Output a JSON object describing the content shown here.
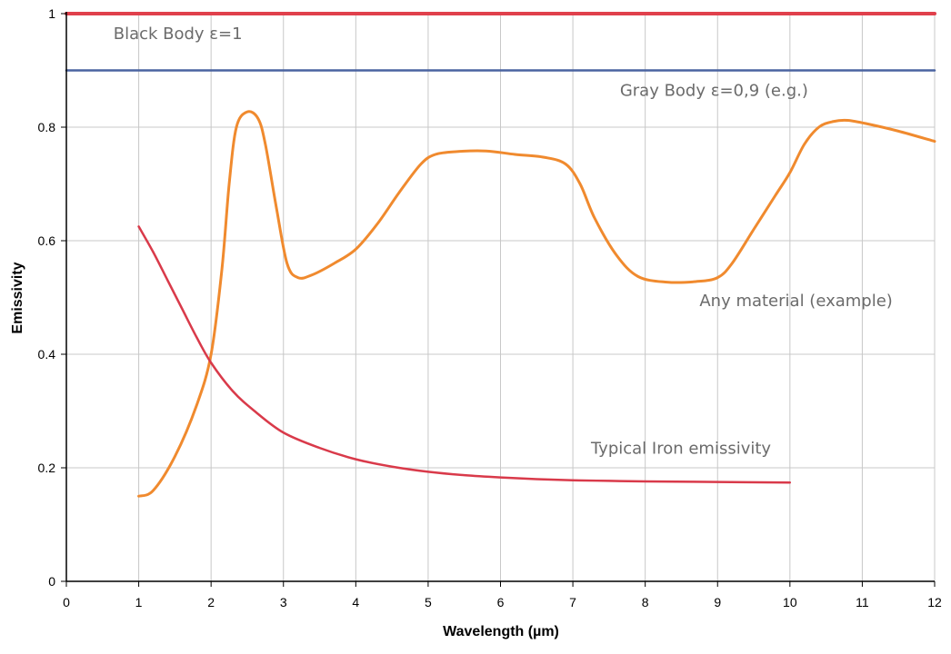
{
  "chart_data": {
    "type": "line",
    "title": "",
    "xlabel": "Wavelength (µm)",
    "ylabel": "Emissivity",
    "xlim": [
      0,
      12
    ],
    "ylim": [
      0,
      1
    ],
    "xticks": [
      0,
      1,
      2,
      3,
      4,
      5,
      6,
      7,
      8,
      9,
      10,
      11,
      12
    ],
    "yticks": [
      0,
      0.2,
      0.4,
      0.6,
      0.8,
      1
    ],
    "xtick_labels": [
      "0",
      "1",
      "2",
      "3",
      "4",
      "5",
      "6",
      "7",
      "8",
      "9",
      "10",
      "11",
      "12"
    ],
    "ytick_labels": [
      "0",
      "0.2",
      "0.4",
      "0.6",
      "0.8",
      "1"
    ],
    "grid": true,
    "series": [
      {
        "name": "Black Body ε=1",
        "color": "#e0404c",
        "x": [
          0,
          12
        ],
        "y": [
          1.0,
          1.0
        ]
      },
      {
        "name": "Gray Body ε=0,9 (e.g.)",
        "color": "#4a63a0",
        "x": [
          0,
          12
        ],
        "y": [
          0.9,
          0.9
        ]
      },
      {
        "name": "Any material (example)",
        "color": "#f08a2e",
        "x": [
          1.0,
          1.2,
          1.5,
          1.8,
          2.0,
          2.15,
          2.25,
          2.35,
          2.5,
          2.65,
          2.75,
          2.9,
          3.05,
          3.2,
          3.4,
          3.7,
          4.0,
          4.3,
          4.6,
          4.9,
          5.1,
          5.4,
          5.8,
          6.2,
          6.6,
          6.9,
          7.1,
          7.3,
          7.6,
          7.9,
          8.3,
          8.7,
          9.0,
          9.2,
          9.5,
          9.8,
          10.0,
          10.2,
          10.4,
          10.6,
          10.8,
          11.1,
          11.5,
          12.0
        ],
        "y": [
          0.15,
          0.16,
          0.22,
          0.31,
          0.4,
          0.55,
          0.7,
          0.8,
          0.827,
          0.815,
          0.77,
          0.66,
          0.56,
          0.535,
          0.54,
          0.56,
          0.585,
          0.63,
          0.685,
          0.735,
          0.752,
          0.757,
          0.758,
          0.752,
          0.747,
          0.735,
          0.7,
          0.64,
          0.575,
          0.537,
          0.527,
          0.528,
          0.535,
          0.56,
          0.62,
          0.68,
          0.72,
          0.77,
          0.8,
          0.81,
          0.812,
          0.805,
          0.793,
          0.775
        ]
      },
      {
        "name": "Typical Iron emissivity",
        "color": "#d93a4a",
        "x": [
          1.0,
          1.2,
          1.4,
          1.6,
          1.8,
          2.0,
          2.3,
          2.6,
          3.0,
          3.5,
          4.0,
          4.5,
          5.0,
          5.5,
          6.0,
          6.5,
          7.0,
          7.5,
          8.0,
          9.0,
          10.0
        ],
        "y": [
          0.625,
          0.58,
          0.53,
          0.48,
          0.43,
          0.385,
          0.335,
          0.3,
          0.262,
          0.235,
          0.215,
          0.202,
          0.193,
          0.187,
          0.183,
          0.18,
          0.178,
          0.177,
          0.176,
          0.175,
          0.174
        ]
      }
    ],
    "annotations": [
      {
        "text": "Black Body ε=1",
        "x": 0.65,
        "y": 0.955
      },
      {
        "text": "Gray Body ε=0,9 (e.g.)",
        "x": 7.65,
        "y": 0.855
      },
      {
        "text": "Any material (example)",
        "x": 8.75,
        "y": 0.485
      },
      {
        "text": "Typical Iron emissivity",
        "x": 7.25,
        "y": 0.225
      }
    ]
  }
}
